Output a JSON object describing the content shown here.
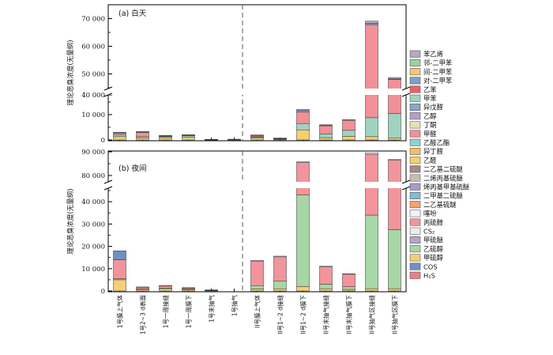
{
  "chart_data": [
    {
      "type": "bar",
      "stacked": true,
      "title": "(a) 白天",
      "ylabel": "理论恶臭浓度(无量纲)",
      "axis_break": [
        15000,
        45000
      ],
      "ylim": [
        0,
        75000
      ],
      "yticks": [
        "0",
        "10 000",
        "40 000",
        "50 000",
        "60 000",
        "70 000"
      ],
      "categories": [
        "1号膜上气体",
        "1号2~3 d表面",
        "1号一周接缝",
        "1号一周膜下",
        "1号末抽气",
        "1号抽气",
        "II号膜上气体",
        "II号1~2 d接缝",
        "II号1~2 d膜下",
        "II号末抽气接缝",
        "II号末抽气膜下",
        "II号抽气区接缝",
        "II号抽气区膜下"
      ],
      "series": [
        {
          "name": "乙醛",
          "values": [
            1300,
            700,
            900,
            1100,
            100,
            150,
            700,
            300,
            4000,
            900,
            1400,
            1300,
            700
          ]
        },
        {
          "name": "甲苯",
          "values": [
            800,
            600,
            400,
            600,
            100,
            100,
            400,
            100,
            2500,
            1500,
            2400,
            7500,
            9800
          ]
        },
        {
          "name": "甲醛",
          "values": [
            600,
            1600,
            300,
            200,
            50,
            50,
            400,
            300,
            4500,
            3200,
            4000,
            59000,
            37500
          ]
        },
        {
          "name": "对-二甲苯",
          "values": [
            200,
            300,
            100,
            100,
            0,
            0,
            300,
            50,
            900,
            300,
            200,
            500,
            200
          ]
        },
        {
          "name": "苯乙烯",
          "values": [
            100,
            100,
            50,
            50,
            0,
            0,
            200,
            0,
            100,
            100,
            0,
            800,
            500
          ]
        }
      ]
    },
    {
      "type": "bar",
      "stacked": true,
      "title": "(b) 夜间",
      "ylabel": "理论恶臭浓度(无量纲)",
      "axis_break": [
        45000,
        78000
      ],
      "ylim": [
        0,
        90000
      ],
      "yticks": [
        "0",
        "10 000",
        "20 000",
        "30 000",
        "40 000",
        "80 000",
        "90 000"
      ],
      "categories": [
        "1号膜上气体",
        "1号2~3 d表面",
        "1号一周接缝",
        "1号一周膜下",
        "1号末抽气",
        "1号抽气",
        "II号膜上气体",
        "II号1~2 d接缝",
        "II号1~2 d膜下",
        "II号末抽气接缝",
        "II号末抽气膜下",
        "II号抽气区接缝",
        "II号抽气区膜下"
      ],
      "series": [
        {
          "name": "甲硫醇",
          "values": [
            5000,
            700,
            1000,
            600,
            200,
            0,
            900,
            1000,
            2000,
            1000,
            700,
            1000,
            1000
          ]
        },
        {
          "name": "乙硫醇",
          "values": [
            500,
            200,
            300,
            300,
            100,
            0,
            1500,
            3500,
            41000,
            2000,
            1200,
            33000,
            26500
          ]
        },
        {
          "name": "丙硫醇",
          "values": [
            8500,
            800,
            1000,
            500,
            200,
            0,
            11000,
            10800,
            42500,
            7800,
            5600,
            55000,
            59000
          ]
        },
        {
          "name": "噻吩",
          "values": [
            0,
            100,
            100,
            100,
            0,
            0,
            300,
            300,
            300,
            300,
            200,
            600,
            300
          ]
        },
        {
          "name": "COS",
          "values": [
            4000,
            0,
            0,
            0,
            0,
            0,
            0,
            0,
            0,
            0,
            0,
            0,
            0
          ]
        }
      ]
    }
  ],
  "legend": [
    {
      "label": "苯乙烯",
      "color": "#b7a7c6"
    },
    {
      "label": "邻-二甲苯",
      "color": "#9ad19c"
    },
    {
      "label": "间-二甲苯",
      "color": "#f5c47a"
    },
    {
      "label": "对-二甲苯",
      "color": "#7f9fc7"
    },
    {
      "label": "乙苯",
      "color": "#e8636a"
    },
    {
      "label": "甲苯",
      "color": "#9fd3c0"
    },
    {
      "label": "异戊醛",
      "color": "#8aa7c9"
    },
    {
      "label": "乙醇",
      "color": "#b79fcb"
    },
    {
      "label": "丁酮",
      "color": "#e7e2b4"
    },
    {
      "label": "甲醛",
      "color": "#f29097"
    },
    {
      "label": "乙酸乙酯",
      "color": "#8fd1d2"
    },
    {
      "label": "异丁醛",
      "color": "#f4be6f"
    },
    {
      "label": "乙醛",
      "color": "#f6d06f"
    },
    {
      "label": "二乙基二硫醚",
      "color": "#a58b84"
    },
    {
      "label": "二烯丙基硫醚",
      "color": "#c7bcb6"
    },
    {
      "label": "烯丙基甲基硫醚",
      "color": "#a59bd0"
    },
    {
      "label": "二甲基二硫醚",
      "color": "#88b9d8"
    },
    {
      "label": "二乙基硫醚",
      "color": "#f3a36a"
    },
    {
      "label": "噻吩",
      "color": "#f1f1f6"
    },
    {
      "label": "丙硫醇",
      "color": "#f2949b"
    },
    {
      "label": "CS₂",
      "color": "#ececec"
    },
    {
      "label": "甲硫醚",
      "color": "#b7a3c8"
    },
    {
      "label": "乙硫醇",
      "color": "#a7d6a7"
    },
    {
      "label": "甲硫醇",
      "color": "#f6cf79"
    },
    {
      "label": "COS",
      "color": "#6f91c3"
    },
    {
      "label": "H₂S",
      "color": "#f07e84"
    }
  ]
}
